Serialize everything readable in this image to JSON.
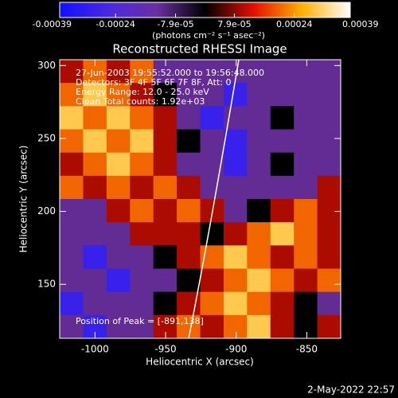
{
  "chart_data": {
    "type": "heatmap",
    "title": "Reconstructed RHESSI Image",
    "x_label": "Heliocentric X (arcsec)",
    "y_label": "Heliocentric Y (arcsec)",
    "xlim": [
      -1025,
      -826
    ],
    "ylim": [
      113,
      304
    ],
    "xticks": [
      -1000,
      -950,
      -900,
      -850
    ],
    "yticks": [
      150,
      200,
      250,
      300
    ],
    "zlim": [
      -0.00039,
      0.00039
    ],
    "colormap": [
      "#1010ff",
      "#4a28e0",
      "#6a30a0",
      "#000000",
      "#e01000",
      "#ffb000",
      "#ffffff"
    ],
    "colorbar_ticks": [
      -0.00039,
      -0.00024,
      {
        "value": -7.9e-05,
        "label": "-7.9e-05"
      },
      {
        "value": 7.9e-05,
        "label": "7.9e-05"
      },
      0.00024,
      0.00039
    ],
    "colorbar_label": "(photons cm⁻² s⁻¹ asec⁻²)",
    "annotations": [
      "27-Jun-2003 19:55:52.000 to 19:56:48.000",
      "Detectors: 3F 4F 5F 6F 7F 8F, Att: 0",
      "Energy Range: 12.0 - 25.0 keV",
      "Clean     Total counts: 1.92e+03"
    ],
    "peak_label": "Position of Peak = [-891,138]",
    "timestamp": "2-May-2022 22:57",
    "z": [
      [
        0.0001,
        0.0002,
        0.0001,
        0.0002,
        -0.00012,
        -0.00012,
        -0.00012,
        -0.00012,
        -0.00012,
        -0.00012,
        -0.00012,
        -0.00012
      ],
      [
        0.0002,
        0.0003,
        0.0002,
        0.0001,
        0,
        -0.00012,
        -0.00012,
        -0.0003,
        -0.00012,
        -0.00012,
        -0.00012,
        -0.00012
      ],
      [
        0.0003,
        0.0002,
        0.0003,
        0.0002,
        0.0001,
        -0.00012,
        -0.0003,
        -0.00012,
        -0.00012,
        0,
        -0.00012,
        -0.00012
      ],
      [
        0.0002,
        0.0003,
        0.0002,
        0.0003,
        0.0001,
        0,
        -0.00012,
        -0.0003,
        -0.00012,
        -0.00012,
        -0.00012,
        -0.00012
      ],
      [
        0.0001,
        0.0002,
        0.0003,
        0.0002,
        0.0001,
        -0.00012,
        -0.00012,
        -0.0003,
        -0.00012,
        0,
        -0.00012,
        -0.00012
      ],
      [
        0.0002,
        0.0001,
        0.0002,
        0.0001,
        0.0002,
        0.0001,
        -0.00012,
        -0.00012,
        -0.00012,
        -0.00012,
        -0.00012,
        0.0001
      ],
      [
        -0.00012,
        -0.00012,
        0.0001,
        0.0002,
        0.0001,
        0.0002,
        0.0001,
        -0.00012,
        0,
        0.0001,
        0.0002,
        0.0001
      ],
      [
        -0.00012,
        -0.00012,
        -0.00012,
        0.0001,
        0.0001,
        0.0001,
        0,
        0.0001,
        0.0002,
        0.0003,
        0.0002,
        0.0001
      ],
      [
        -0.00012,
        -0.0003,
        -0.00012,
        -0.00012,
        0,
        0.0001,
        0.0002,
        0.0003,
        0.0002,
        0.0001,
        0.0002,
        0.0001
      ],
      [
        -0.00012,
        -0.00012,
        -0.0003,
        -0.00012,
        -0.00012,
        0,
        0.0001,
        0.0002,
        0.0003,
        0.0002,
        0.0001,
        0.0002
      ],
      [
        -0.0003,
        -0.00012,
        -0.00012,
        -0.00012,
        0,
        0.0001,
        0.0002,
        0.0003,
        0.0002,
        0.0001,
        0,
        -0.00012
      ],
      [
        -0.00012,
        -0.0003,
        -0.00012,
        -0.00012,
        0.0001,
        0.0002,
        0.0001,
        0.0002,
        0.0003,
        0.0001,
        0,
        0.0001
      ]
    ]
  }
}
